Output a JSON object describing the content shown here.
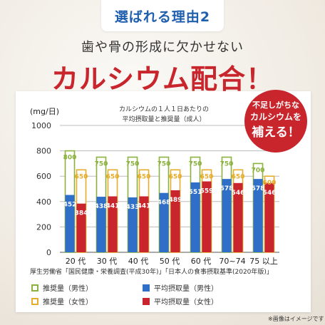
{
  "header": {
    "reason_tab": "選ばれる理由2",
    "subtitle": "歯や骨の形成に欠かせない",
    "headline": "カルシウム配合！"
  },
  "callout": {
    "line1": "不足しがちな",
    "line2": "カルシウムを",
    "line3": "補える！"
  },
  "colors": {
    "rec_male": "#8bb23f",
    "rec_female": "#e6ad2c",
    "avg_male": "#2f6fc8",
    "avg_female": "#c8252c",
    "callout_bg": "#c8252c",
    "accent_blue": "#1f5fae"
  },
  "chart_data": {
    "type": "bar",
    "title_line1": "カルシウムの１人１日あたりの",
    "title_line2": "平均摂取量と推奨量（成人）",
    "ylabel": "(mg/日)",
    "ylim": [
      0,
      1000
    ],
    "yticks": [
      0,
      200,
      400,
      600,
      800,
      1000
    ],
    "categories": [
      "20 代",
      "30 代",
      "40 代",
      "50 代",
      "60 代",
      "70~74",
      "75 以上"
    ],
    "series": [
      {
        "name": "推奨量（男性）",
        "kind": "outline",
        "color": "#8bb23f",
        "values": [
          800,
          750,
          750,
          750,
          750,
          750,
          700
        ]
      },
      {
        "name": "推奨量（女性）",
        "kind": "outline",
        "color": "#e6ad2c",
        "values": [
          650,
          650,
          650,
          650,
          650,
          650,
          600
        ]
      },
      {
        "name": "平均摂取量（男性）",
        "kind": "fill",
        "color": "#2f6fc8",
        "values": [
          452,
          438,
          433,
          468,
          551,
          578,
          578
        ]
      },
      {
        "name": "平均摂取量（女性）",
        "kind": "fill",
        "color": "#c8252c",
        "values": [
          384,
          441,
          441,
          489,
          559,
          546,
          546
        ]
      }
    ],
    "source": "厚生労働省「国民健康・栄養調査(平成30年)」「日本人の食事摂取基準(2020年版)」"
  },
  "legend": {
    "rec_male": "推奨量（男性）",
    "rec_female": "推奨量（女性）",
    "avg_male": "平均摂取量（男性）",
    "avg_female": "平均摂取量（女性）"
  },
  "footnote": "※画像はイメージです"
}
